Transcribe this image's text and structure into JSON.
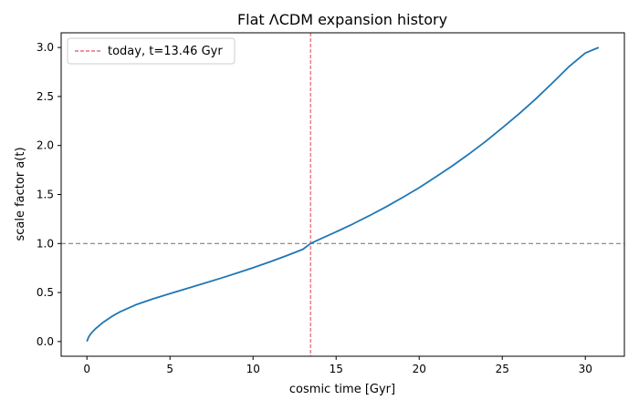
{
  "chart_data": {
    "type": "line",
    "title": "Flat ΛCDM expansion history",
    "xlabel": "cosmic time [Gyr]",
    "ylabel": "scale factor a(t)",
    "xlim": [
      -1.55,
      32.35
    ],
    "ylim": [
      -0.15,
      3.15
    ],
    "x_ticks": [
      0,
      5,
      10,
      15,
      20,
      25,
      30
    ],
    "y_ticks": [
      0.0,
      0.5,
      1.0,
      1.5,
      2.0,
      2.5,
      3.0
    ],
    "x_tick_labels": [
      "0",
      "5",
      "10",
      "15",
      "20",
      "25",
      "30"
    ],
    "y_tick_labels": [
      "0.0",
      "0.5",
      "1.0",
      "1.5",
      "2.0",
      "2.5",
      "3.0"
    ],
    "grid": false,
    "legend_position": "top-left",
    "series": [
      {
        "color": "#1f77b4",
        "x": [
          0.0,
          0.1,
          0.25,
          0.5,
          1.0,
          1.5,
          2.0,
          3.0,
          4.0,
          5.0,
          6.0,
          7.0,
          8.0,
          9.0,
          10.0,
          11.0,
          12.0,
          13.0,
          13.46,
          14.0,
          15.0,
          16.0,
          17.0,
          18.0,
          19.0,
          20.0,
          21.0,
          22.0,
          23.0,
          24.0,
          25.0,
          26.0,
          27.0,
          28.0,
          29.0,
          30.0,
          30.8
        ],
        "y": [
          0.0,
          0.045,
          0.083,
          0.128,
          0.199,
          0.256,
          0.304,
          0.379,
          0.437,
          0.489,
          0.54,
          0.591,
          0.643,
          0.697,
          0.753,
          0.812,
          0.875,
          0.941,
          1.0,
          1.043,
          1.119,
          1.199,
          1.284,
          1.374,
          1.47,
          1.57,
          1.68,
          1.793,
          1.914,
          2.042,
          2.18,
          2.322,
          2.473,
          2.635,
          2.803,
          2.944,
          3.0
        ]
      }
    ],
    "reference_lines": [
      {
        "orientation": "vertical",
        "x": 13.46,
        "color": "#e8525a",
        "style": "dashed",
        "label": "today, t=13.46 Gyr"
      },
      {
        "orientation": "horizontal",
        "y": 1.0,
        "color": "#808080",
        "style": "dashed"
      }
    ],
    "legend": [
      {
        "label": "today, t=13.46 Gyr",
        "color": "#e8525a",
        "style": "dashed"
      }
    ]
  }
}
